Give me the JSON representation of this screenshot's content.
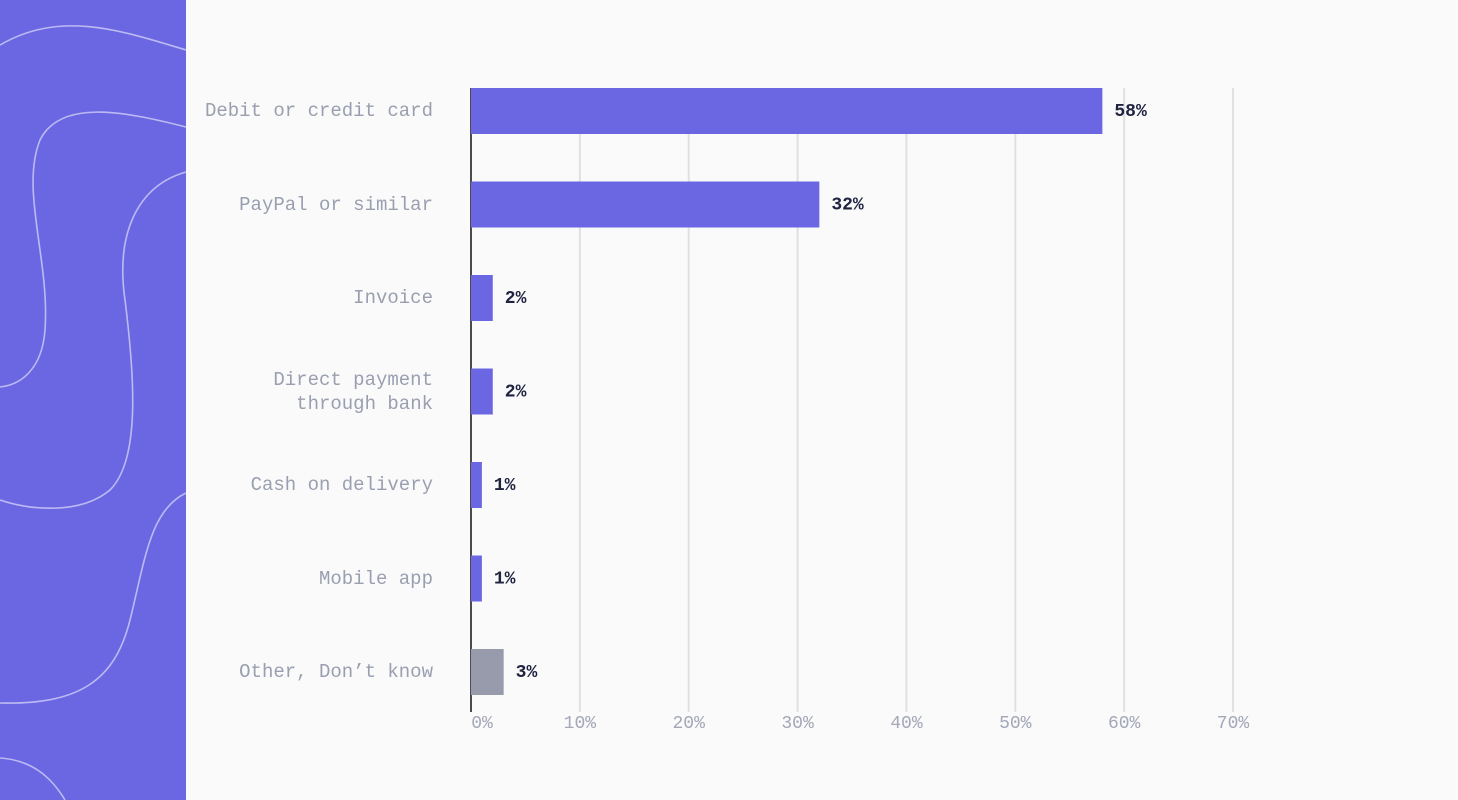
{
  "chart_data": {
    "type": "bar",
    "orientation": "horizontal",
    "categories": [
      "Debit or credit card",
      "PayPal or similar",
      "Invoice",
      "Direct payment\nthrough bank",
      "Cash on delivery",
      "Mobile app",
      "Other, Don’t know"
    ],
    "values": [
      58,
      32,
      2,
      2,
      1,
      1,
      3
    ],
    "value_labels": [
      "58%",
      "32%",
      "2%",
      "2%",
      "1%",
      "1%",
      "3%"
    ],
    "colors": [
      "#6b67e3",
      "#6b67e3",
      "#6b67e3",
      "#6b67e3",
      "#6b67e3",
      "#6b67e3",
      "#979bab"
    ],
    "xlim": [
      0,
      70
    ],
    "xticks": [
      {
        "value": 0,
        "label": "0%"
      },
      {
        "value": 10,
        "label": "10%"
      },
      {
        "value": 20,
        "label": "20%"
      },
      {
        "value": 30,
        "label": "30%"
      },
      {
        "value": 40,
        "label": "40%"
      },
      {
        "value": 50,
        "label": "50%"
      },
      {
        "value": 60,
        "label": "60%"
      },
      {
        "value": 70,
        "label": "70%"
      }
    ],
    "grid": true
  }
}
